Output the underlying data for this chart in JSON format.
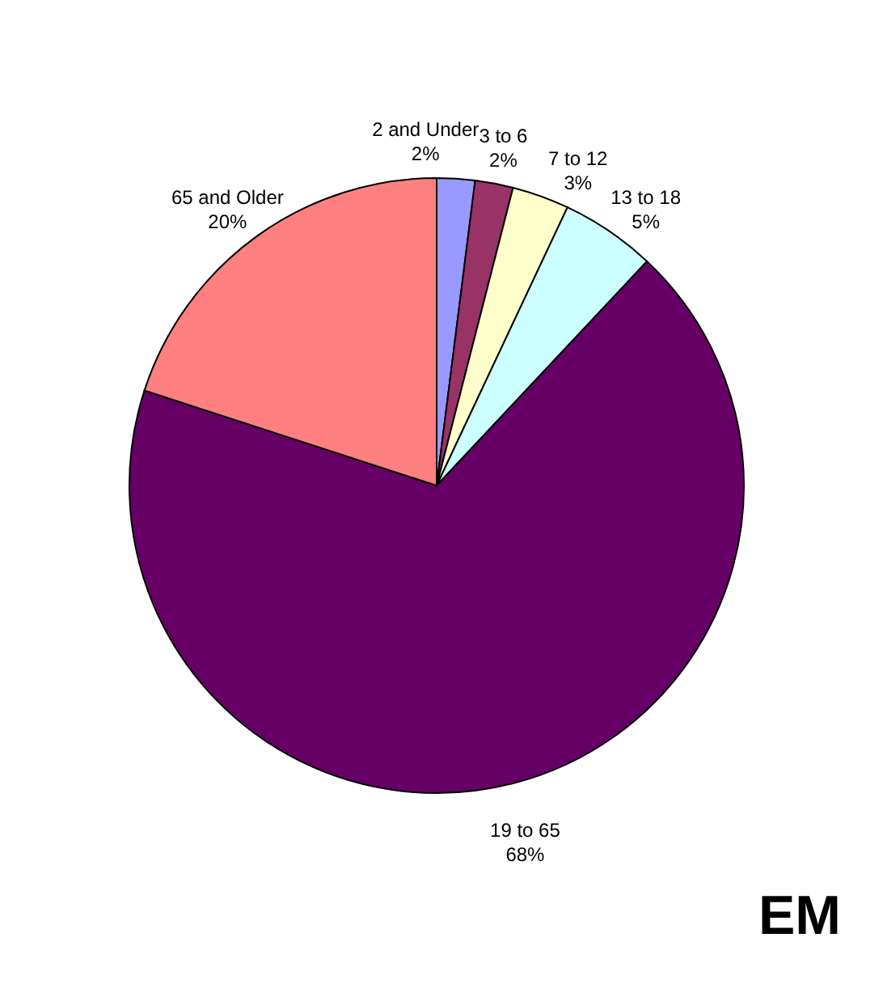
{
  "chart_data": {
    "type": "pie",
    "categories": [
      "2 and Under",
      "3 to 6",
      "7 to 12",
      "13 to 18",
      "19 to 65",
      "65 and Older"
    ],
    "values": [
      2,
      2,
      3,
      5,
      68,
      20
    ],
    "value_labels": [
      "2%",
      "2%",
      "3%",
      "5%",
      "68%",
      "20%"
    ],
    "colors": [
      "#9999ff",
      "#993366",
      "#ffffcc",
      "#ccffff",
      "#660066",
      "#ff8080"
    ],
    "legend": false,
    "annotations": [
      "EM"
    ]
  }
}
